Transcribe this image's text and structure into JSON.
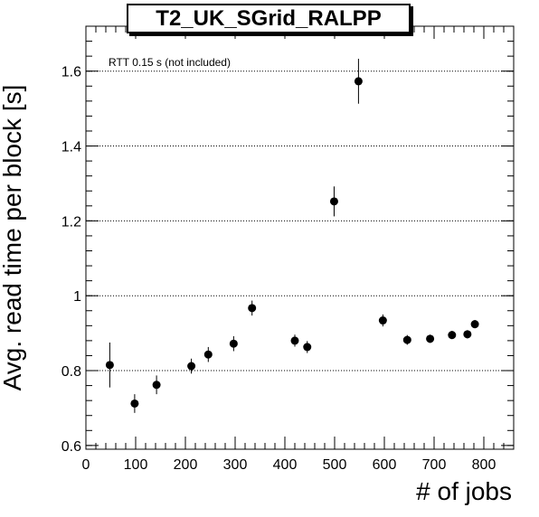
{
  "chart_data": {
    "type": "scatter",
    "title": "T2_UK_SGrid_RALPP",
    "xlabel": "# of jobs",
    "ylabel": "Avg. read time per block [s]",
    "annotation": "RTT 0.15 s (not included)",
    "xlim": [
      0,
      860
    ],
    "ylim": [
      0.59,
      1.72
    ],
    "xticks": [
      0,
      100,
      200,
      300,
      400,
      500,
      600,
      700,
      800
    ],
    "yticks": [
      0.6,
      0.8,
      1,
      1.2,
      1.4,
      1.6
    ],
    "ytick_labels": [
      "0.6",
      "0.8",
      "1",
      "1.2",
      "1.4",
      "1.6"
    ],
    "grid": "horizontal dotted",
    "points": [
      {
        "x": 48,
        "y": 0.815,
        "err": 0.06
      },
      {
        "x": 98,
        "y": 0.712,
        "err": 0.025
      },
      {
        "x": 142,
        "y": 0.762,
        "err": 0.025
      },
      {
        "x": 212,
        "y": 0.812,
        "err": 0.02
      },
      {
        "x": 246,
        "y": 0.843,
        "err": 0.02
      },
      {
        "x": 297,
        "y": 0.872,
        "err": 0.02
      },
      {
        "x": 334,
        "y": 0.967,
        "err": 0.02
      },
      {
        "x": 420,
        "y": 0.88,
        "err": 0.016
      },
      {
        "x": 445,
        "y": 0.863,
        "err": 0.016
      },
      {
        "x": 499,
        "y": 1.252,
        "err": 0.04
      },
      {
        "x": 548,
        "y": 1.573,
        "err": 0.06
      },
      {
        "x": 597,
        "y": 0.934,
        "err": 0.016
      },
      {
        "x": 646,
        "y": 0.882,
        "err": 0.013
      },
      {
        "x": 692,
        "y": 0.885,
        "err": 0.011
      },
      {
        "x": 736,
        "y": 0.895,
        "err": 0.011
      },
      {
        "x": 767,
        "y": 0.897,
        "err": 0.011
      },
      {
        "x": 782,
        "y": 0.924,
        "err": 0.011
      }
    ]
  }
}
